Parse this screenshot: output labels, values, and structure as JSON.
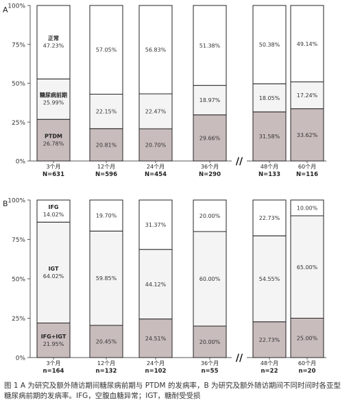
{
  "chart_data": [
    {
      "type": "bar",
      "stacked": true,
      "panel_label": "A",
      "ylim": [
        0,
        100
      ],
      "yticks": [
        "0%",
        "25%",
        "50%",
        "75%",
        "100%"
      ],
      "categories": [
        {
          "period": "3个月",
          "n": "N=631"
        },
        {
          "period": "12个月",
          "n": "N=596"
        },
        {
          "period": "24个月",
          "n": "N=454"
        },
        {
          "period": "36个月",
          "n": "N=290"
        },
        {
          "period": "48个月",
          "n": "N=133"
        },
        {
          "period": "60个月",
          "n": "N=116"
        }
      ],
      "series": [
        {
          "name": "PTDM",
          "color": "#c9bcbc",
          "values": [
            26.78,
            20.81,
            20.7,
            29.66,
            31.58,
            33.62
          ],
          "labels": [
            "26.78%",
            "20.81%",
            "20.70%",
            "29.66%",
            "31.58%",
            "33.62%"
          ]
        },
        {
          "name": "糖尿病前期",
          "color": "#f4f4f4",
          "values": [
            25.99,
            22.15,
            22.47,
            18.97,
            18.05,
            17.24
          ],
          "labels": [
            "25.99%",
            "22.15%",
            "22.47%",
            "18.97%",
            "18.05%",
            "17.24%"
          ]
        },
        {
          "name": "正常",
          "color": "#ffffff",
          "values": [
            47.23,
            57.05,
            56.83,
            51.38,
            50.38,
            49.14
          ],
          "labels": [
            "47.23%",
            "57.05%",
            "56.83%",
            "51.38%",
            "50.38%",
            "49.14%"
          ]
        }
      ],
      "inline_labels": {
        "PTDM": "PTDM",
        "糖尿病前期": "糖尿病前期",
        "正常": "正常"
      },
      "axis_break": "//"
    },
    {
      "type": "bar",
      "stacked": true,
      "panel_label": "B",
      "ylim": [
        0,
        100
      ],
      "yticks": [
        "0%",
        "25%",
        "50%",
        "75%",
        "100%"
      ],
      "categories": [
        {
          "period": "3个月",
          "n": "n=164"
        },
        {
          "period": "12个月",
          "n": "n=132"
        },
        {
          "period": "24个月",
          "n": "n=102"
        },
        {
          "period": "36个月",
          "n": "n=55"
        },
        {
          "period": "48个月",
          "n": "n=22"
        },
        {
          "period": "60个月",
          "n": "n=20"
        }
      ],
      "series": [
        {
          "name": "IFG+IGT",
          "color": "#c9bcbc",
          "values": [
            21.95,
            20.45,
            24.51,
            20.0,
            22.73,
            25.0
          ],
          "labels": [
            "21.95%",
            "20.45%",
            "24.51%",
            "20.00%",
            "22.73%",
            "25.00%"
          ]
        },
        {
          "name": "IGT",
          "color": "#f4f4f4",
          "values": [
            64.02,
            59.85,
            44.12,
            60.0,
            54.55,
            65.0
          ],
          "labels": [
            "64.02%",
            "59.85%",
            "44.12%",
            "60.00%",
            "54.55%",
            "65.00%"
          ]
        },
        {
          "name": "IFG",
          "color": "#ffffff",
          "values": [
            14.02,
            19.7,
            31.37,
            20.0,
            22.73,
            10.0
          ],
          "labels": [
            "14.02%",
            "19.70%",
            "31.37%",
            "20.00%",
            "22.73%",
            "10.00%"
          ]
        }
      ],
      "inline_labels": {
        "IFG+IGT": "IFG+IGT",
        "IGT": "IGT",
        "IFG": "IFG"
      },
      "axis_break": "//"
    }
  ],
  "caption": "图 1 A 为研究及额外随访期间糖尿病前期与 PTDM 的发病率，B 为研究及额外随访期间不同时间时各亚型糖尿病前期的发病率。IFG，空腹血糖异常；IGT，糖耐受受损"
}
